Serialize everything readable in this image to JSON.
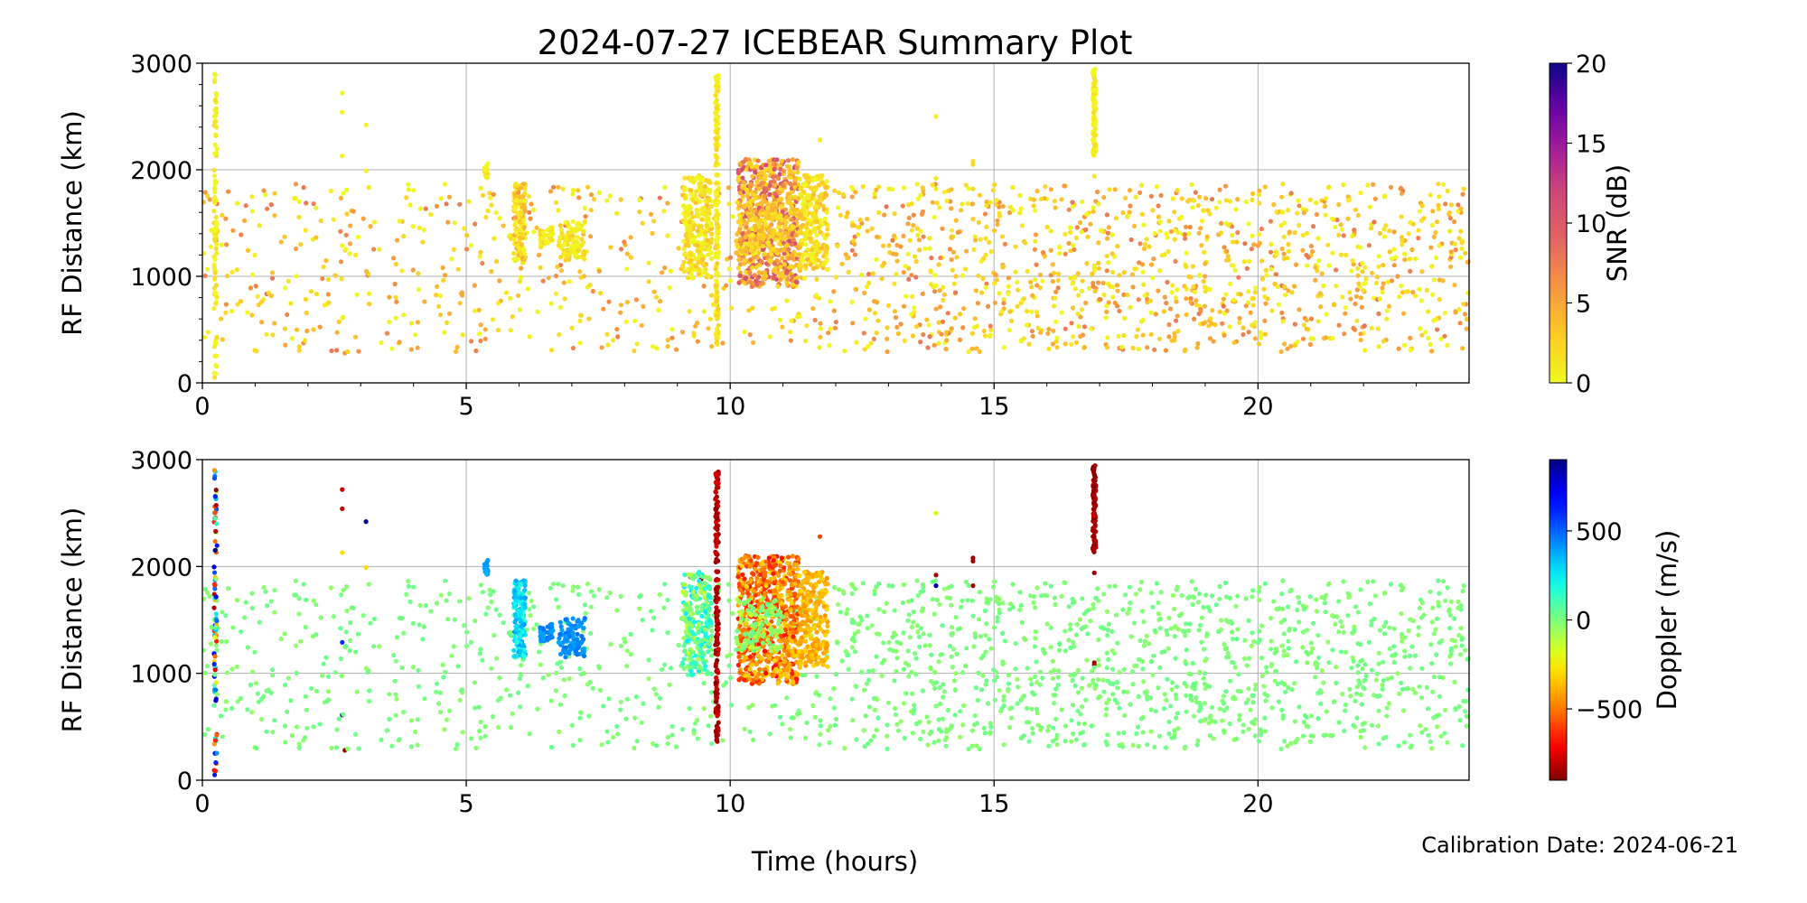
{
  "chart_data": {
    "type": "scatter",
    "title": "2024-07-27 ICEBEAR Summary Plot",
    "xlabel": "Time (hours)",
    "annotation": "Calibration Date: 2024-06-21",
    "xlim": [
      0,
      24
    ],
    "xticks": [
      0,
      5,
      10,
      15,
      20
    ],
    "xtick_labels": [
      "0",
      "5",
      "10",
      "15",
      "20"
    ],
    "grid": true,
    "panels": [
      {
        "ylabel": "RF Distance (km)",
        "ylim": [
          0,
          3000
        ],
        "yticks": [
          0,
          1000,
          2000,
          3000
        ],
        "ytick_labels": [
          "0",
          "1000",
          "2000",
          "3000"
        ],
        "color_by": "snr",
        "colorbar": {
          "label": "SNR (dB)",
          "colormap": "plasma_r",
          "range": [
            0,
            20
          ],
          "ticks": [
            0,
            5,
            10,
            15,
            20
          ],
          "tick_labels": [
            "0",
            "5",
            "10",
            "15",
            "20"
          ]
        }
      },
      {
        "ylabel": "RF Distance (km)",
        "ylim": [
          0,
          3000
        ],
        "yticks": [
          0,
          1000,
          2000,
          3000
        ],
        "ytick_labels": [
          "0",
          "1000",
          "2000",
          "3000"
        ],
        "color_by": "doppler",
        "colorbar": {
          "label": "Doppler (m/s)",
          "colormap": "jet_r",
          "range": [
            -900,
            900
          ],
          "ticks": [
            -500,
            0,
            500
          ],
          "tick_labels": [
            "−500",
            "0",
            "500"
          ]
        }
      }
    ],
    "point_fields": [
      "time_hours",
      "rf_distance_km",
      "snr_db",
      "doppler_ms"
    ],
    "points": [
      [
        2.65,
        2720,
        0.5,
        -800
      ],
      [
        2.65,
        2540,
        0.5,
        -800
      ],
      [
        2.65,
        2130,
        0.5,
        -300
      ],
      [
        2.65,
        1290,
        0.5,
        600
      ],
      [
        2.65,
        610,
        0.5,
        850
      ],
      [
        2.7,
        280,
        6,
        -850
      ],
      [
        3.1,
        2420,
        0.5,
        850
      ],
      [
        3.1,
        1990,
        0.5,
        -300
      ],
      [
        11.7,
        2280,
        1,
        -600
      ],
      [
        13.9,
        2500,
        1,
        -200
      ],
      [
        14.6,
        2080,
        2,
        -850
      ],
      [
        14.6,
        2050,
        2,
        -850
      ],
      [
        14.6,
        1820,
        2,
        -850
      ],
      [
        13.9,
        1920,
        1,
        -850
      ],
      [
        13.9,
        1820,
        1,
        850
      ],
      [
        9.25,
        1900,
        2,
        -850
      ],
      [
        9.45,
        1880,
        2,
        -850
      ],
      [
        16.9,
        1940,
        1,
        -850
      ],
      [
        16.9,
        1100,
        1,
        -850
      ],
      [
        16.9,
        1080,
        1,
        -850
      ],
      [
        23.9,
        1820,
        2,
        0
      ]
    ],
    "clusters": [
      {
        "name": "background",
        "count": 1700,
        "t": [
          0,
          24
        ],
        "r": [
          290,
          1870
        ],
        "snr": [
          0,
          8
        ],
        "doppler": [
          -40,
          40
        ],
        "weight_late": true
      },
      {
        "name": "t0.25-vertical",
        "count": 90,
        "t": [
          0.22,
          0.28
        ],
        "r": [
          30,
          2920
        ],
        "snr": [
          0,
          2
        ],
        "doppler": [
          -880,
          880
        ]
      },
      {
        "name": "t5.4",
        "count": 14,
        "t": [
          5.33,
          5.42
        ],
        "r": [
          1920,
          2070
        ],
        "snr": [
          0,
          2
        ],
        "doppler": [
          350,
          450
        ]
      },
      {
        "name": "t6.0",
        "count": 160,
        "t": [
          5.9,
          6.12
        ],
        "r": [
          1150,
          1870
        ],
        "snr": [
          0,
          6
        ],
        "doppler": [
          150,
          400
        ]
      },
      {
        "name": "t6.5",
        "count": 40,
        "t": [
          6.4,
          6.65
        ],
        "r": [
          1300,
          1460
        ],
        "snr": [
          0,
          3
        ],
        "doppler": [
          380,
          480
        ]
      },
      {
        "name": "t7.0",
        "count": 90,
        "t": [
          6.75,
          7.25
        ],
        "r": [
          1150,
          1520
        ],
        "snr": [
          0,
          3
        ],
        "doppler": [
          380,
          480
        ]
      },
      {
        "name": "t9.3",
        "count": 250,
        "t": [
          9.1,
          9.65
        ],
        "r": [
          980,
          1950
        ],
        "snr": [
          0,
          4
        ],
        "doppler": [
          -150,
          250
        ]
      },
      {
        "name": "t9.75-vertical",
        "count": 180,
        "t": [
          9.72,
          9.78
        ],
        "r": [
          350,
          2950
        ],
        "snr": [
          0,
          3
        ],
        "doppler": [
          -900,
          -750
        ]
      },
      {
        "name": "t10.7",
        "count": 700,
        "t": [
          10.15,
          11.3
        ],
        "r": [
          900,
          2100
        ],
        "snr": [
          2,
          12
        ],
        "doppler": [
          -700,
          -300
        ]
      },
      {
        "name": "t10.3-green",
        "count": 120,
        "t": [
          10.1,
          11.0
        ],
        "r": [
          1200,
          1700
        ],
        "snr": [
          1,
          5
        ],
        "doppler": [
          -150,
          50
        ]
      },
      {
        "name": "t11.5",
        "count": 250,
        "t": [
          11.3,
          11.85
        ],
        "r": [
          1050,
          1950
        ],
        "snr": [
          0,
          4
        ],
        "doppler": [
          -450,
          -300
        ]
      },
      {
        "name": "t16.9-vertical",
        "count": 100,
        "t": [
          16.87,
          16.93
        ],
        "r": [
          2130,
          2950
        ],
        "snr": [
          0,
          2
        ],
        "doppler": [
          -900,
          -780
        ]
      }
    ]
  }
}
